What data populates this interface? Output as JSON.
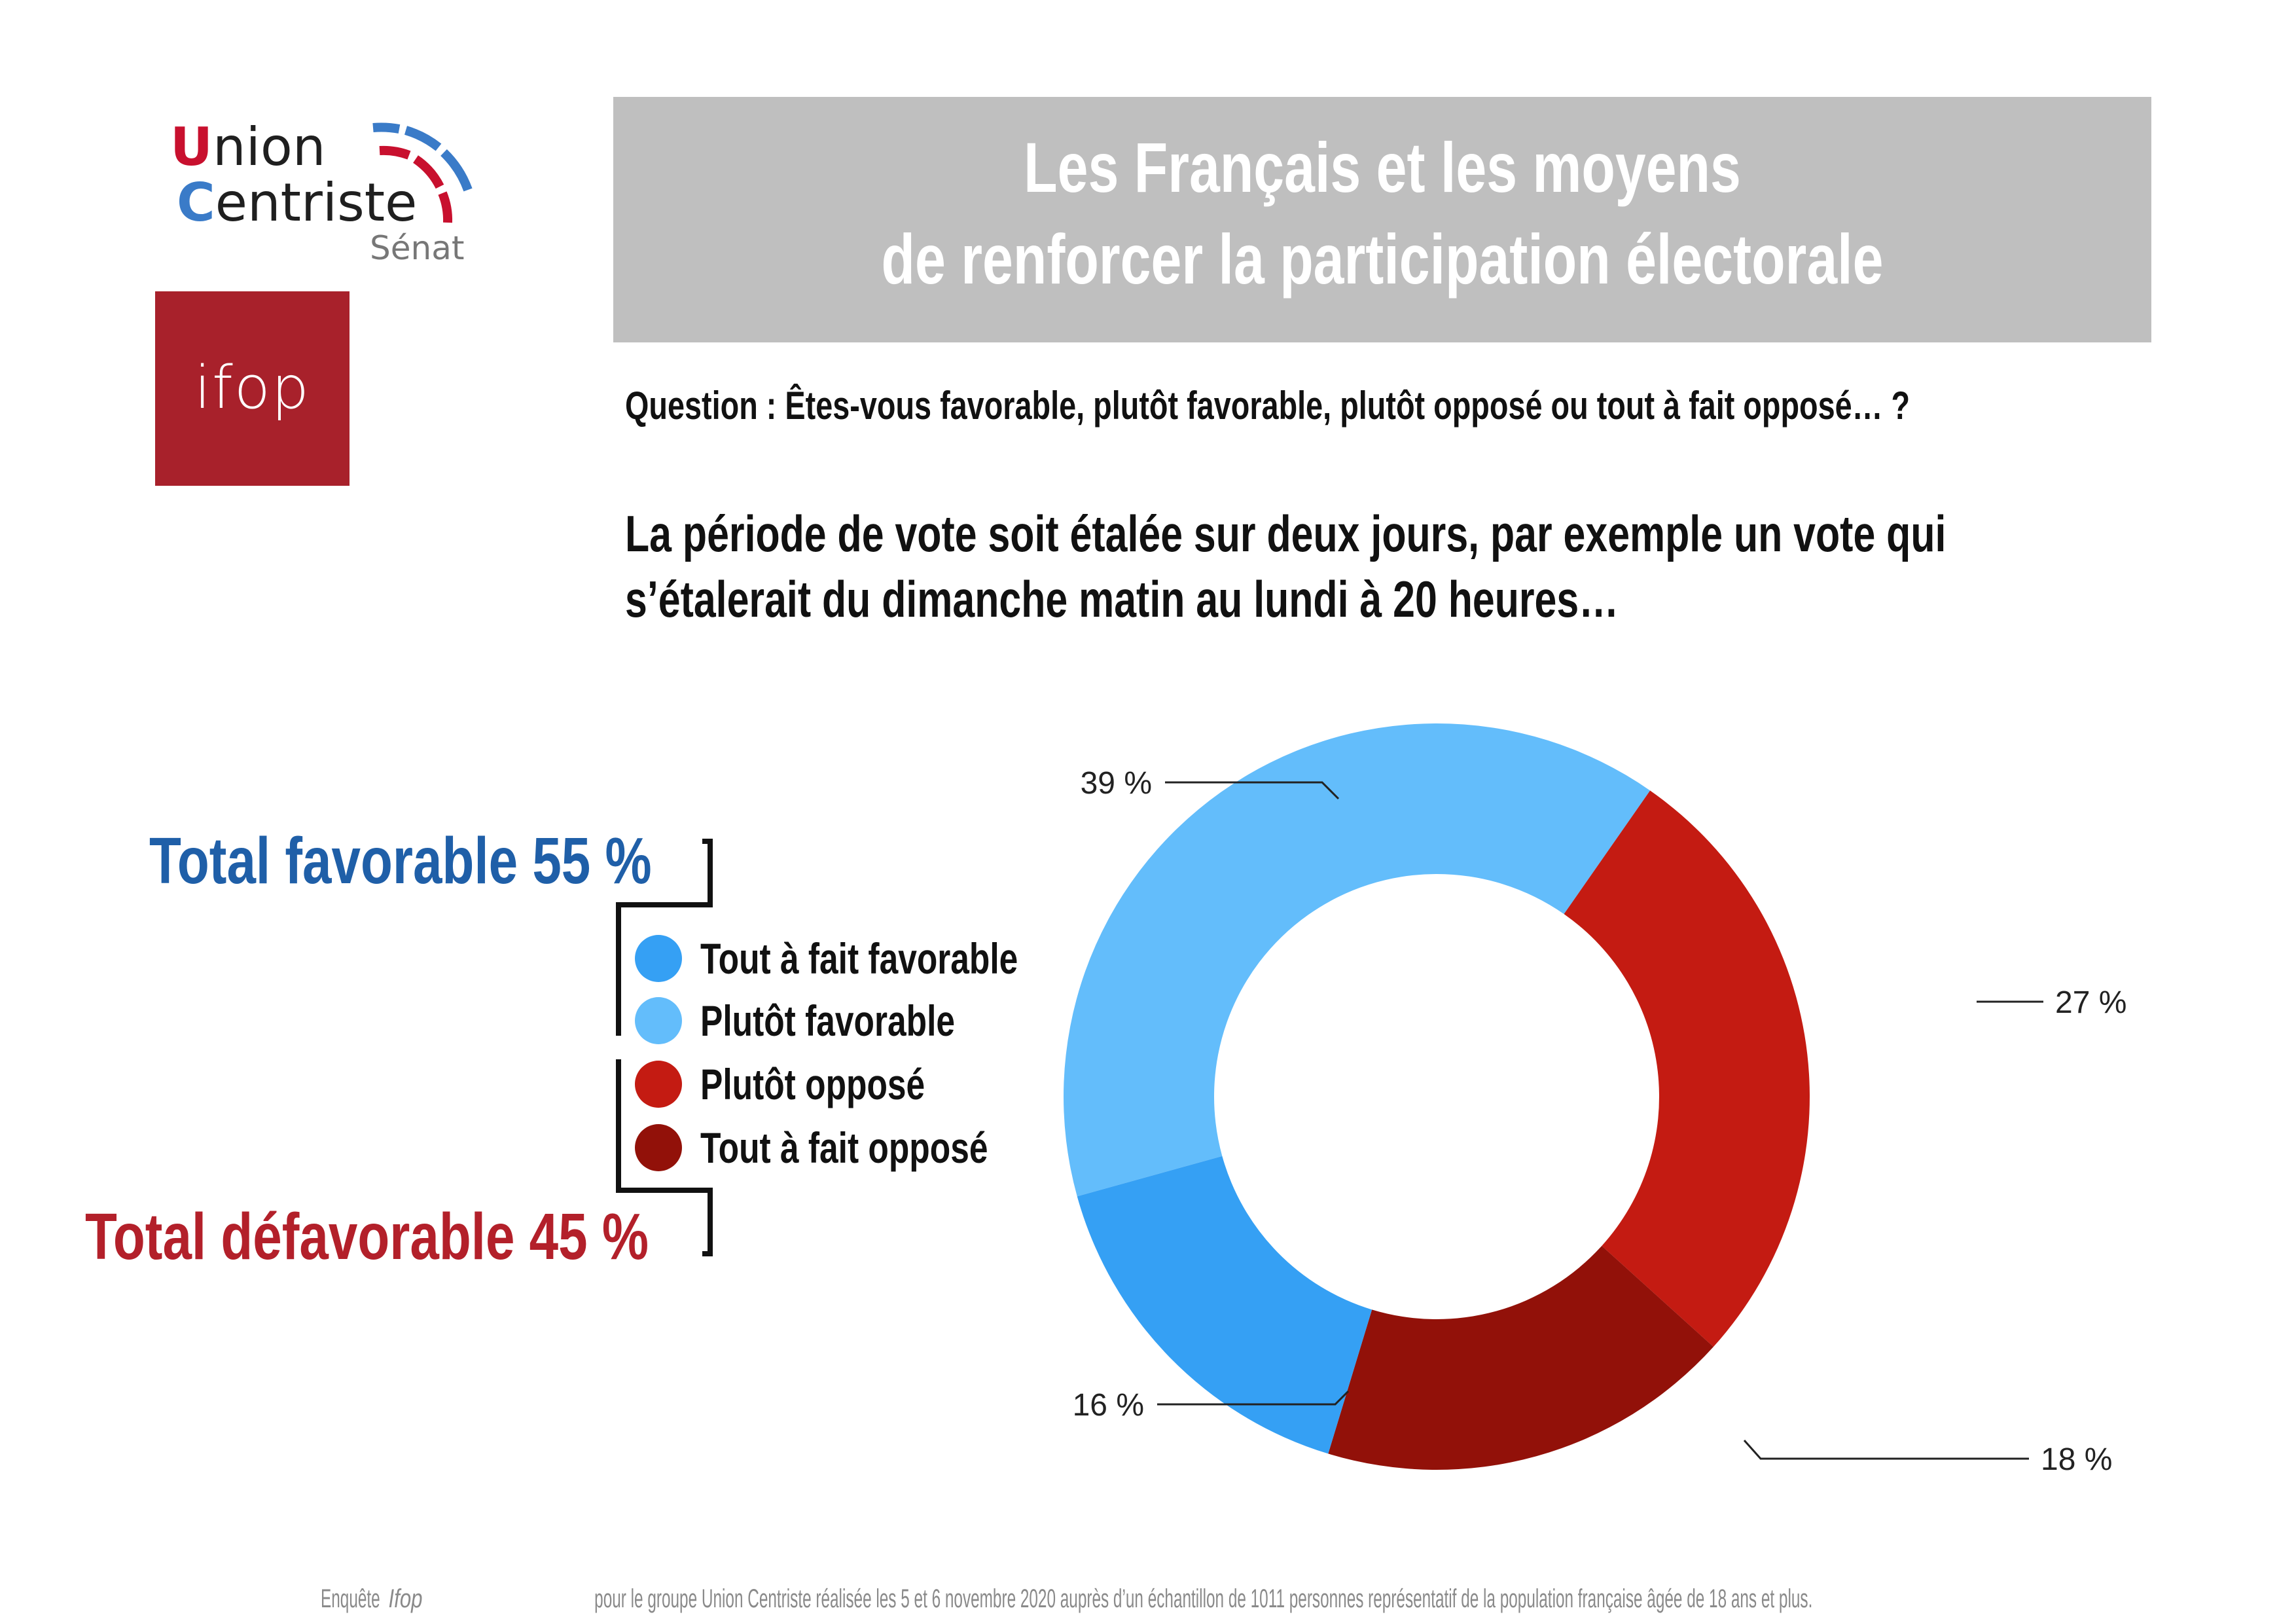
{
  "logos": {
    "uc_word1_cap": "U",
    "uc_word1_rest": "nion",
    "uc_word2_cap": "C",
    "uc_word2_rest": "entriste",
    "uc_sub": "Sénat",
    "ifop": "ifop"
  },
  "title": {
    "line1": "Les Français et les moyens",
    "line2": "de renforcer la participation électorale"
  },
  "question": "Question : Êtes-vous favorable, plutôt favorable, plutôt opposé ou tout à fait opposé… ?",
  "statement": {
    "line1": "La période de vote soit étalée sur deux jours, par exemple un vote qui",
    "line2": "s’étalerait du dimanche matin au lundi à 20 heures…"
  },
  "totals": {
    "favorable": "Total favorable 55 %",
    "defavorable": "Total défavorable 45 %"
  },
  "chart_data": {
    "type": "pie",
    "donut": true,
    "categories": [
      "Plutôt favorable",
      "Plutôt opposé",
      "Tout à fait opposé",
      "Tout à fait favorable"
    ],
    "values": [
      39,
      27,
      18,
      16
    ],
    "labels": [
      "39 %",
      "27 %",
      "18 %",
      "16 %"
    ],
    "colors": [
      "#63bdfb",
      "#c41b12",
      "#921109",
      "#35a0f4"
    ],
    "legend": [
      {
        "label": "Tout à fait favorable",
        "color": "#35a0f4"
      },
      {
        "label": "Plutôt favorable",
        "color": "#63bdfb"
      },
      {
        "label": "Plutôt opposé",
        "color": "#c41b12"
      },
      {
        "label": "Tout à fait opposé",
        "color": "#921109"
      }
    ],
    "legend_position": "left"
  },
  "footer": {
    "before": "Enquête ",
    "italic": "Ifop",
    "after": " pour le groupe Union Centriste réalisée les 5 et 6 novembre 2020 auprès d’un échantillon de 1011 personnes représentatif de la population française âgée de 18 ans et plus."
  },
  "colors": {
    "title_bg": "#bfbfbf",
    "fav_total": "#1f5fa8",
    "def_total": "#b3202a",
    "ifop_red": "#a8212b"
  }
}
